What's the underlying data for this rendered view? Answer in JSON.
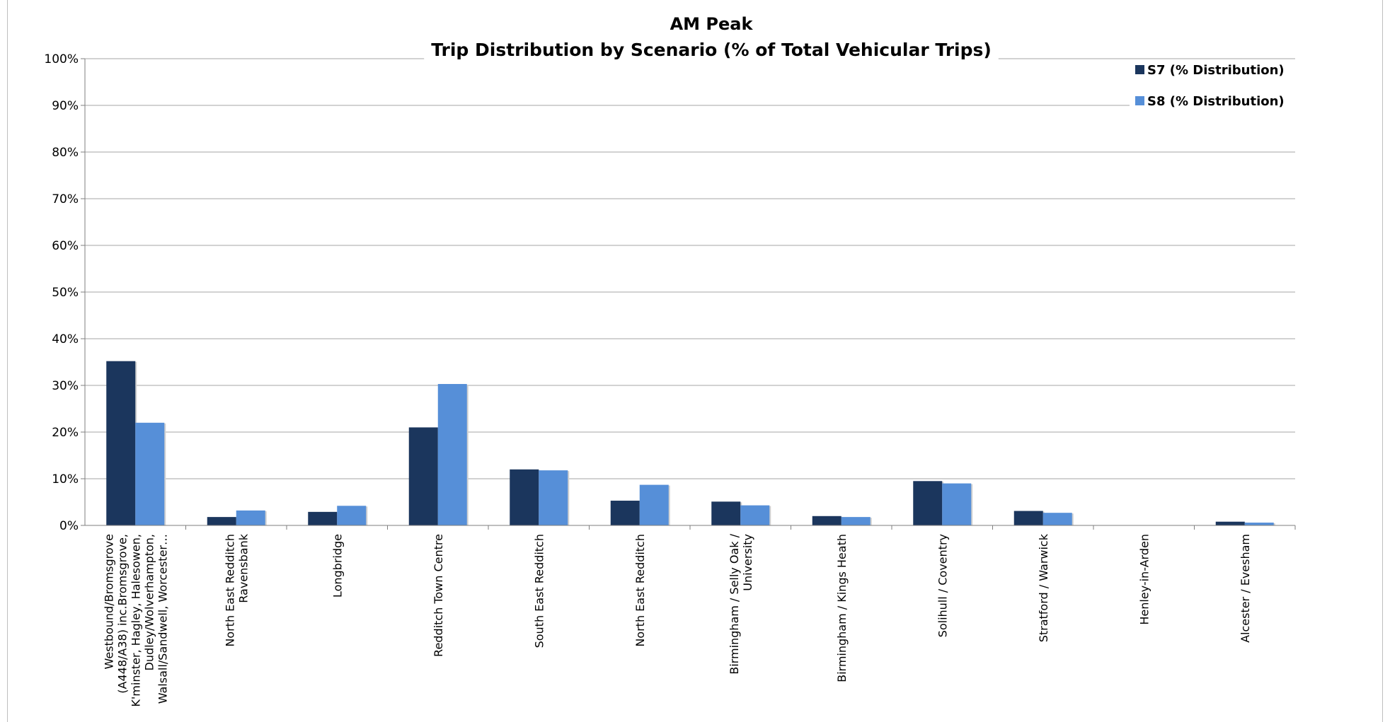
{
  "chart_data": {
    "type": "bar",
    "title": [
      "AM Peak",
      "Trip Distribution by  Scenario (% of Total Vehicular Trips)"
    ],
    "xlabel": "",
    "ylabel": "",
    "ylim": [
      0,
      100
    ],
    "yticks": [
      "0%",
      "10%",
      "20%",
      "30%",
      "40%",
      "50%",
      "60%",
      "70%",
      "80%",
      "90%",
      "100%"
    ],
    "grid": true,
    "legend_position": "top-right",
    "categories": [
      [
        "Westbound/Bromsgrove",
        "(A448/A38) inc.Bromsgrove,",
        "K'minster, Hagley, Halesowen,",
        "Dudley/Wolverhampton,",
        "Walsall/Sandwell, Worcester…"
      ],
      [
        "North East Redditch",
        "Ravensbank"
      ],
      [
        "Longbridge"
      ],
      [
        "Redditch Town Centre"
      ],
      [
        "South East Redditch"
      ],
      [
        "North East Redditch"
      ],
      [
        "Birmingham / Selly Oak /",
        "University"
      ],
      [
        "Birmingham / Kings Heath"
      ],
      [
        "Solihull / Coventry"
      ],
      [
        "Stratford / Warwick"
      ],
      [
        "Henley-in-Arden"
      ],
      [
        "Alcester / Evesham"
      ]
    ],
    "series": [
      {
        "name": "S7 (% Distribution)",
        "color": "#1b365d",
        "values": [
          35.2,
          1.8,
          2.9,
          21.0,
          12.0,
          5.3,
          5.1,
          2.0,
          9.5,
          3.1,
          0,
          0.8
        ]
      },
      {
        "name": "S8 (% Distribution)",
        "color": "#568fd8",
        "values": [
          22.0,
          3.2,
          4.2,
          30.3,
          11.8,
          8.7,
          4.3,
          1.8,
          9.0,
          2.7,
          0,
          0.6
        ]
      }
    ]
  }
}
